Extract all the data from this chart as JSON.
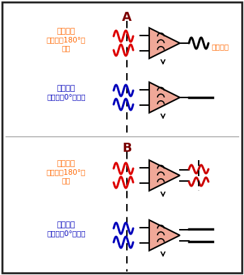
{
  "bg_color": "#ffffff",
  "border_color": "#222222",
  "label_A": "A",
  "label_B": "B",
  "label_color": "#7b0000",
  "diff_signal_color": "#ff6600",
  "common_signal_color": "#0000bb",
  "output_wave_color_A": "#000000",
  "output_wave_color_B": "#cc0000",
  "wave_red": "#dd0000",
  "wave_blue": "#0000bb",
  "triangle_fill": "#f0a898",
  "triangle_edge": "#000000",
  "text_diff": "差模信號",
  "text_diff_line2": "（反相，180°相",
  "text_diff_line3": "差）",
  "text_common": "共模信號",
  "text_common_paren": "（同相，0°相差）",
  "text_single": "單端信號",
  "figsize": [
    3.5,
    3.95
  ],
  "dpi": 100
}
